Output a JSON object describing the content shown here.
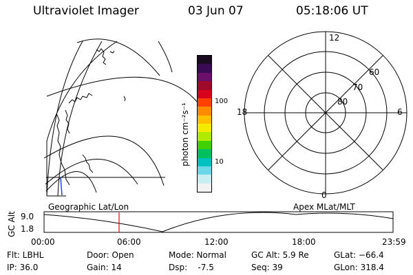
{
  "header": {
    "instrument": "Ultraviolet Imager",
    "date": "03 Jun 07",
    "time": "05:18:06 UT"
  },
  "colorbar": {
    "unit_label": "photon cm⁻²s⁻¹",
    "tick_labels": [
      "100",
      "10"
    ],
    "colors": [
      "#1a0b20",
      "#3a0a55",
      "#6a0f6a",
      "#a00a2a",
      "#d8001a",
      "#ff4000",
      "#ff8c00",
      "#ffc000",
      "#f4ec00",
      "#b0ea00",
      "#40d000",
      "#00c060",
      "#00c0c0",
      "#6ad8e8",
      "#c8eef2",
      "#f2f2f2"
    ]
  },
  "polar_plot": {
    "mlt_labels": [
      "12",
      "18",
      "6",
      "0"
    ],
    "mlat_labels": [
      "60",
      "70",
      "80"
    ]
  },
  "orbit_plot": {
    "left_label": "Geographic Lat/Lon",
    "right_label": "Apex MLat/MLT",
    "y_axis_title": "GC Alt",
    "y_ticks": [
      "9.0",
      "1.8"
    ],
    "x_ticks": [
      "00:00",
      "06:00",
      "12:00",
      "18:00",
      "23:59"
    ],
    "marker_color": "#ff0000"
  },
  "info": {
    "filter": "Flt: LBHL",
    "ip": "IP: 36.0",
    "door": "Door: Open",
    "gain": "Gain: 14",
    "mode": "Mode: Normal",
    "dsp": "Dsp:    -7.5",
    "gc_alt": "GC Alt: 5.9 Re",
    "seq": "Seq: 39",
    "glat": "GLat: −66.4",
    "glon": "GLon: 318.4"
  }
}
